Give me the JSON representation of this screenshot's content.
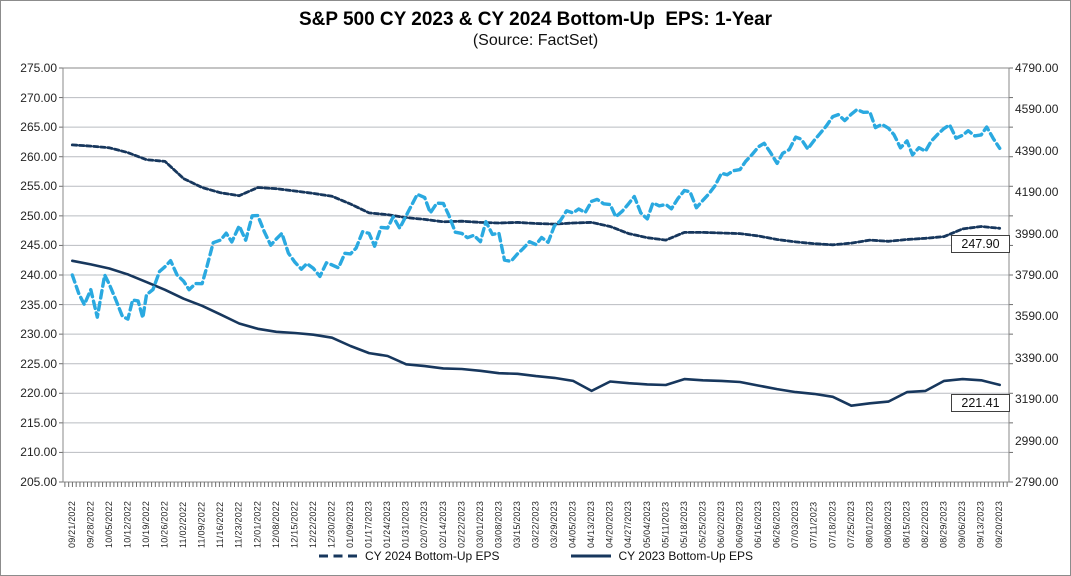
{
  "title": "S&P 500 CY 2023 & CY 2024 Bottom-Up  EPS: 1-Year",
  "subtitle": "(Source: FactSet)",
  "colors": {
    "navy": "#17375d",
    "light_blue": "#2aa9e0",
    "gridline": "#b9bcc1",
    "plot_border": "#888888",
    "axis_text": "#242424"
  },
  "end_labels": {
    "cy2024": "247.90",
    "cy2023": "221.41"
  },
  "legend": [
    {
      "label": "CY 2024 Bottom-Up EPS",
      "marker": "dashed"
    },
    {
      "label": "CY 2023 Bottom-Up EPS",
      "marker": "solid"
    }
  ],
  "chart_data": {
    "type": "line",
    "title": "S&P 500 CY 2023 & CY 2024 Bottom-Up  EPS: 1-Year",
    "subtitle": "(Source: FactSet)",
    "grid": true,
    "legend_position": "bottom",
    "left_axis": {
      "min": 205,
      "max": 275,
      "step": 5,
      "labels": [
        "275.00",
        "270.00",
        "265.00",
        "260.00",
        "255.00",
        "250.00",
        "245.00",
        "240.00",
        "235.00",
        "230.00",
        "225.00",
        "220.00",
        "215.00",
        "210.00",
        "205.00"
      ]
    },
    "right_axis": {
      "min": 2790,
      "max": 4790,
      "step": 200,
      "labels": [
        "4790.00",
        "4590.00",
        "4390.00",
        "4190.00",
        "3990.00",
        "3790.00",
        "3590.00",
        "3390.00",
        "3190.00",
        "2990.00",
        "2790.00"
      ]
    },
    "categories": [
      "09/21/2022",
      "09/28/2022",
      "10/05/2022",
      "10/12/2022",
      "10/19/2022",
      "10/26/2022",
      "11/02/2022",
      "11/09/2022",
      "11/16/2022",
      "11/23/2022",
      "12/01/2022",
      "12/08/2022",
      "12/15/2022",
      "12/22/2022",
      "12/30/2022",
      "01/09/2023",
      "01/17/2023",
      "01/24/2023",
      "01/31/2023",
      "02/07/2023",
      "02/14/2023",
      "02/22/2023",
      "03/01/2023",
      "03/08/2023",
      "03/15/2023",
      "03/22/2023",
      "03/29/2023",
      "04/05/2023",
      "04/13/2023",
      "04/20/2023",
      "04/27/2023",
      "05/04/2023",
      "05/11/2023",
      "05/18/2023",
      "05/25/2023",
      "06/02/2023",
      "06/09/2023",
      "06/16/2023",
      "06/26/2023",
      "07/03/2023",
      "07/11/2023",
      "07/18/2023",
      "07/25/2023",
      "08/01/2023",
      "08/08/2023",
      "08/15/2023",
      "08/22/2023",
      "08/29/2023",
      "09/06/2023",
      "09/13/2023",
      "09/20/2023"
    ],
    "series": [
      {
        "name": "CY 2024 Bottom-Up EPS",
        "axis": "left",
        "line": "dash-fine",
        "color": "#17375d",
        "end_label": "247.90",
        "values": [
          262.0,
          261.8,
          261.5,
          260.7,
          259.5,
          259.2,
          256.3,
          254.8,
          253.9,
          253.4,
          254.8,
          254.6,
          254.2,
          253.8,
          253.3,
          252.0,
          250.5,
          250.2,
          249.7,
          249.4,
          249.0,
          249.1,
          248.9,
          248.8,
          248.9,
          248.7,
          248.6,
          248.8,
          248.9,
          248.2,
          247.0,
          246.3,
          245.9,
          247.2,
          247.2,
          247.1,
          247.0,
          246.6,
          246.0,
          245.6,
          245.3,
          245.1,
          245.4,
          245.9,
          245.7,
          246.0,
          246.2,
          246.5,
          247.8,
          248.2,
          247.9
        ]
      },
      {
        "name": "CY 2023 Bottom-Up EPS",
        "axis": "left",
        "line": "solid",
        "color": "#17375d",
        "end_label": "221.41",
        "values": [
          242.4,
          241.8,
          241.1,
          240.1,
          238.8,
          237.5,
          236.0,
          234.8,
          233.3,
          231.8,
          230.9,
          230.4,
          230.2,
          229.9,
          229.4,
          228.0,
          226.8,
          226.3,
          224.9,
          224.6,
          224.2,
          224.1,
          223.8,
          223.4,
          223.3,
          222.9,
          222.6,
          222.1,
          220.4,
          222.0,
          221.7,
          221.5,
          221.4,
          222.4,
          222.2,
          222.1,
          221.9,
          221.3,
          220.7,
          220.2,
          219.9,
          219.4,
          217.9,
          218.3,
          218.6,
          220.2,
          220.4,
          222.1,
          222.4,
          222.2,
          221.41
        ]
      },
      {
        "name": "",
        "id": "unlabeled-price-series",
        "axis": "right",
        "line": "dashed",
        "color": "#2aa9e0",
        "points": [
          [
            0,
            3790
          ],
          [
            0.35,
            3700
          ],
          [
            0.65,
            3647
          ],
          [
            1,
            3719
          ],
          [
            1.35,
            3586
          ],
          [
            1.75,
            3790
          ],
          [
            2,
            3744
          ],
          [
            2.35,
            3669
          ],
          [
            2.7,
            3590
          ],
          [
            3,
            3577
          ],
          [
            3.25,
            3669
          ],
          [
            3.55,
            3665
          ],
          [
            3.8,
            3583
          ],
          [
            4,
            3695
          ],
          [
            4.35,
            3720
          ],
          [
            4.7,
            3807
          ],
          [
            5,
            3830
          ],
          [
            5.3,
            3859
          ],
          [
            5.65,
            3790
          ],
          [
            6,
            3760
          ],
          [
            6.3,
            3719
          ],
          [
            6.65,
            3749
          ],
          [
            7,
            3748
          ],
          [
            7.25,
            3828
          ],
          [
            7.6,
            3946
          ],
          [
            8,
            3959
          ],
          [
            8.3,
            3992
          ],
          [
            8.6,
            3950
          ],
          [
            9,
            4027
          ],
          [
            9.35,
            3958
          ],
          [
            9.7,
            4076
          ],
          [
            10,
            4077
          ],
          [
            10.35,
            3999
          ],
          [
            10.7,
            3934
          ],
          [
            11,
            3964
          ],
          [
            11.3,
            3991
          ],
          [
            11.65,
            3896
          ],
          [
            12,
            3852
          ],
          [
            12.35,
            3818
          ],
          [
            12.65,
            3845
          ],
          [
            13,
            3822
          ],
          [
            13.35,
            3783
          ],
          [
            13.7,
            3849
          ],
          [
            14,
            3839
          ],
          [
            14.35,
            3825
          ],
          [
            14.7,
            3895
          ],
          [
            15,
            3892
          ],
          [
            15.3,
            3920
          ],
          [
            15.65,
            3999
          ],
          [
            16,
            3991
          ],
          [
            16.3,
            3929
          ],
          [
            16.65,
            4020
          ],
          [
            17,
            4017
          ],
          [
            17.3,
            4071
          ],
          [
            17.65,
            4016
          ],
          [
            18,
            4077
          ],
          [
            18.25,
            4120
          ],
          [
            18.6,
            4180
          ],
          [
            19,
            4164
          ],
          [
            19.3,
            4090
          ],
          [
            19.65,
            4137
          ],
          [
            20,
            4136
          ],
          [
            20.3,
            4079
          ],
          [
            20.65,
            3997
          ],
          [
            21,
            3991
          ],
          [
            21.3,
            3970
          ],
          [
            21.65,
            3982
          ],
          [
            22,
            3951
          ],
          [
            22.3,
            4048
          ],
          [
            22.65,
            3986
          ],
          [
            23,
            3992
          ],
          [
            23.3,
            3862
          ],
          [
            23.65,
            3856
          ],
          [
            24,
            3892
          ],
          [
            24.3,
            3917
          ],
          [
            24.65,
            3951
          ],
          [
            25,
            3937
          ],
          [
            25.3,
            3971
          ],
          [
            25.65,
            3948
          ],
          [
            26,
            4028
          ],
          [
            26.3,
            4051
          ],
          [
            26.65,
            4100
          ],
          [
            27,
            4090
          ],
          [
            27.3,
            4109
          ],
          [
            27.65,
            4092
          ],
          [
            28,
            4146
          ],
          [
            28.3,
            4155
          ],
          [
            28.65,
            4134
          ],
          [
            29,
            4130
          ],
          [
            29.3,
            4071
          ],
          [
            29.65,
            4098
          ],
          [
            30,
            4135
          ],
          [
            30.3,
            4169
          ],
          [
            30.65,
            4090
          ],
          [
            31,
            4061
          ],
          [
            31.3,
            4138
          ],
          [
            31.65,
            4124
          ],
          [
            32,
            4131
          ],
          [
            32.3,
            4110
          ],
          [
            32.65,
            4159
          ],
          [
            33,
            4198
          ],
          [
            33.3,
            4192
          ],
          [
            33.65,
            4115
          ],
          [
            34,
            4151
          ],
          [
            34.3,
            4180
          ],
          [
            34.65,
            4221
          ],
          [
            35,
            4282
          ],
          [
            35.3,
            4274
          ],
          [
            35.65,
            4294
          ],
          [
            36,
            4299
          ],
          [
            36.3,
            4339
          ],
          [
            36.65,
            4372
          ],
          [
            37,
            4410
          ],
          [
            37.3,
            4426
          ],
          [
            37.65,
            4381
          ],
          [
            38,
            4329
          ],
          [
            38.3,
            4378
          ],
          [
            38.65,
            4396
          ],
          [
            39,
            4456
          ],
          [
            39.3,
            4446
          ],
          [
            39.65,
            4399
          ],
          [
            40,
            4440
          ],
          [
            40.3,
            4472
          ],
          [
            40.65,
            4510
          ],
          [
            41,
            4555
          ],
          [
            41.3,
            4565
          ],
          [
            41.65,
            4536
          ],
          [
            42,
            4567
          ],
          [
            42.3,
            4589
          ],
          [
            42.65,
            4576
          ],
          [
            43,
            4577
          ],
          [
            43.3,
            4502
          ],
          [
            43.65,
            4518
          ],
          [
            44,
            4499
          ],
          [
            44.3,
            4468
          ],
          [
            44.65,
            4404
          ],
          [
            45,
            4438
          ],
          [
            45.3,
            4370
          ],
          [
            45.65,
            4405
          ],
          [
            46,
            4388
          ],
          [
            46.3,
            4436
          ],
          [
            46.65,
            4469
          ],
          [
            47,
            4498
          ],
          [
            47.3,
            4515
          ],
          [
            47.65,
            4451
          ],
          [
            48,
            4465
          ],
          [
            48.3,
            4487
          ],
          [
            48.65,
            4462
          ],
          [
            49,
            4467
          ],
          [
            49.3,
            4505
          ],
          [
            49.65,
            4450
          ],
          [
            50,
            4402
          ]
        ]
      }
    ]
  }
}
